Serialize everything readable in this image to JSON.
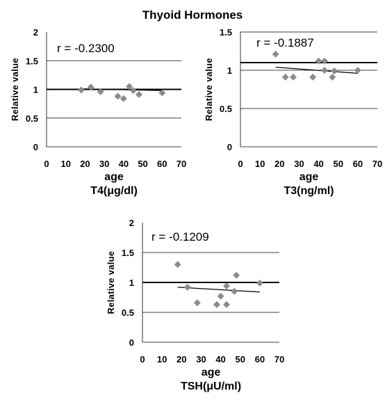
{
  "figure": {
    "title": "Thyoid Hormones"
  },
  "chart_data": [
    {
      "type": "scatter",
      "sublabel": "T4(μg/dl)",
      "xlabel": "age",
      "ylabel": "Relative value",
      "annotation": "r = -0.2300",
      "xlim": [
        0,
        70
      ],
      "ylim": [
        0,
        2
      ],
      "xticks": [
        0,
        10,
        20,
        30,
        40,
        50,
        60,
        70
      ],
      "yticks": [
        0,
        0.5,
        1,
        1.5,
        2
      ],
      "ytick_labels": [
        "0",
        "0.5",
        "1",
        "1.5",
        "2"
      ],
      "gridlines": [
        0.5,
        1,
        1.5
      ],
      "reference_line": 1,
      "trend_line": {
        "x": [
          18,
          60
        ],
        "y": [
          1.01,
          0.98
        ]
      },
      "points": [
        {
          "x": 18,
          "y": 0.99
        },
        {
          "x": 23,
          "y": 1.04
        },
        {
          "x": 28,
          "y": 0.96
        },
        {
          "x": 37,
          "y": 0.88
        },
        {
          "x": 40,
          "y": 0.84
        },
        {
          "x": 43,
          "y": 1.05
        },
        {
          "x": 45,
          "y": 0.98
        },
        {
          "x": 48,
          "y": 0.91
        },
        {
          "x": 60,
          "y": 0.94
        }
      ],
      "marker_color": "#8c8c8c"
    },
    {
      "type": "scatter",
      "sublabel": "T3(ng/ml)",
      "xlabel": "age",
      "ylabel": "Relative value",
      "annotation": "r = -0.1887",
      "xlim": [
        0,
        70
      ],
      "ylim": [
        0,
        1.5
      ],
      "xticks": [
        0,
        10,
        20,
        30,
        40,
        50,
        60,
        70
      ],
      "yticks": [
        0,
        0.5,
        1,
        1.5
      ],
      "ytick_labels": [
        "0",
        "0.5",
        "1",
        "1.5"
      ],
      "gridlines": [
        0.5,
        1,
        1.5
      ],
      "reference_line": 1.1,
      "trend_line": {
        "x": [
          18,
          60
        ],
        "y": [
          1.04,
          0.96
        ]
      },
      "points": [
        {
          "x": 18,
          "y": 1.21
        },
        {
          "x": 23,
          "y": 0.91
        },
        {
          "x": 27,
          "y": 0.91
        },
        {
          "x": 37,
          "y": 0.91
        },
        {
          "x": 40,
          "y": 1.12
        },
        {
          "x": 43,
          "y": 1.12
        },
        {
          "x": 43,
          "y": 1.0
        },
        {
          "x": 47,
          "y": 0.91
        },
        {
          "x": 48,
          "y": 0.99
        },
        {
          "x": 60,
          "y": 1.0
        }
      ],
      "marker_color": "#8c8c8c"
    },
    {
      "type": "scatter",
      "sublabel": "TSH(μU/ml)",
      "xlabel": "age",
      "ylabel": "Relative value",
      "annotation": "r = -0.1209",
      "xlim": [
        0,
        70
      ],
      "ylim": [
        0,
        2
      ],
      "xticks": [
        0,
        10,
        20,
        30,
        40,
        50,
        60,
        70
      ],
      "yticks": [
        0,
        0.5,
        1,
        1.5,
        2
      ],
      "ytick_labels": [
        "0",
        "0.5",
        "1",
        "1.5",
        "2"
      ],
      "gridlines": [
        0.5,
        1,
        1.5
      ],
      "reference_line": 1,
      "trend_line": {
        "x": [
          18,
          60
        ],
        "y": [
          0.92,
          0.84
        ]
      },
      "points": [
        {
          "x": 18,
          "y": 1.3
        },
        {
          "x": 23,
          "y": 0.92
        },
        {
          "x": 28,
          "y": 0.66
        },
        {
          "x": 38,
          "y": 0.63
        },
        {
          "x": 40,
          "y": 0.77
        },
        {
          "x": 43,
          "y": 0.94
        },
        {
          "x": 43,
          "y": 0.63
        },
        {
          "x": 47,
          "y": 0.85
        },
        {
          "x": 48,
          "y": 1.12
        },
        {
          "x": 60,
          "y": 0.99
        }
      ],
      "marker_color": "#8c8c8c"
    }
  ]
}
